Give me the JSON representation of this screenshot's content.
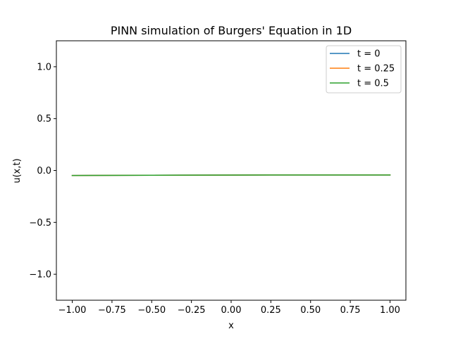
{
  "chart_data": {
    "type": "line",
    "title": "PINN simulation of Burgers' Equation in 1D",
    "xlabel": "x",
    "ylabel": "u(x,t)",
    "xlim": [
      -1.1,
      1.1
    ],
    "ylim": [
      -1.25,
      1.25
    ],
    "xticks": [
      -1.0,
      -0.75,
      -0.5,
      -0.25,
      0.0,
      0.25,
      0.5,
      0.75,
      1.0
    ],
    "xtick_labels": [
      "−1.00",
      "−0.75",
      "−0.50",
      "−0.25",
      "0.00",
      "0.25",
      "0.50",
      "0.75",
      "1.00"
    ],
    "yticks": [
      -1.0,
      -0.5,
      0.0,
      0.5,
      1.0
    ],
    "ytick_labels": [
      "−1.0",
      "−0.5",
      "0.0",
      "0.5",
      "1.0"
    ],
    "grid": false,
    "legend_position": "top-right",
    "series": [
      {
        "name": "t = 0",
        "color": "#1f77b4",
        "x": [
          -1.0,
          -0.5,
          0.0,
          0.5,
          1.0
        ],
        "y": [
          -0.048,
          -0.046,
          -0.044,
          -0.043,
          -0.043
        ]
      },
      {
        "name": "t = 0.25",
        "color": "#ff7f0e",
        "x": [
          -1.0,
          -0.5,
          0.0,
          0.5,
          1.0
        ],
        "y": [
          -0.048,
          -0.046,
          -0.044,
          -0.043,
          -0.043
        ]
      },
      {
        "name": "t = 0.5",
        "color": "#2ca02c",
        "x": [
          -1.0,
          -0.5,
          0.0,
          0.5,
          1.0
        ],
        "y": [
          -0.048,
          -0.046,
          -0.044,
          -0.043,
          -0.043
        ]
      }
    ]
  }
}
